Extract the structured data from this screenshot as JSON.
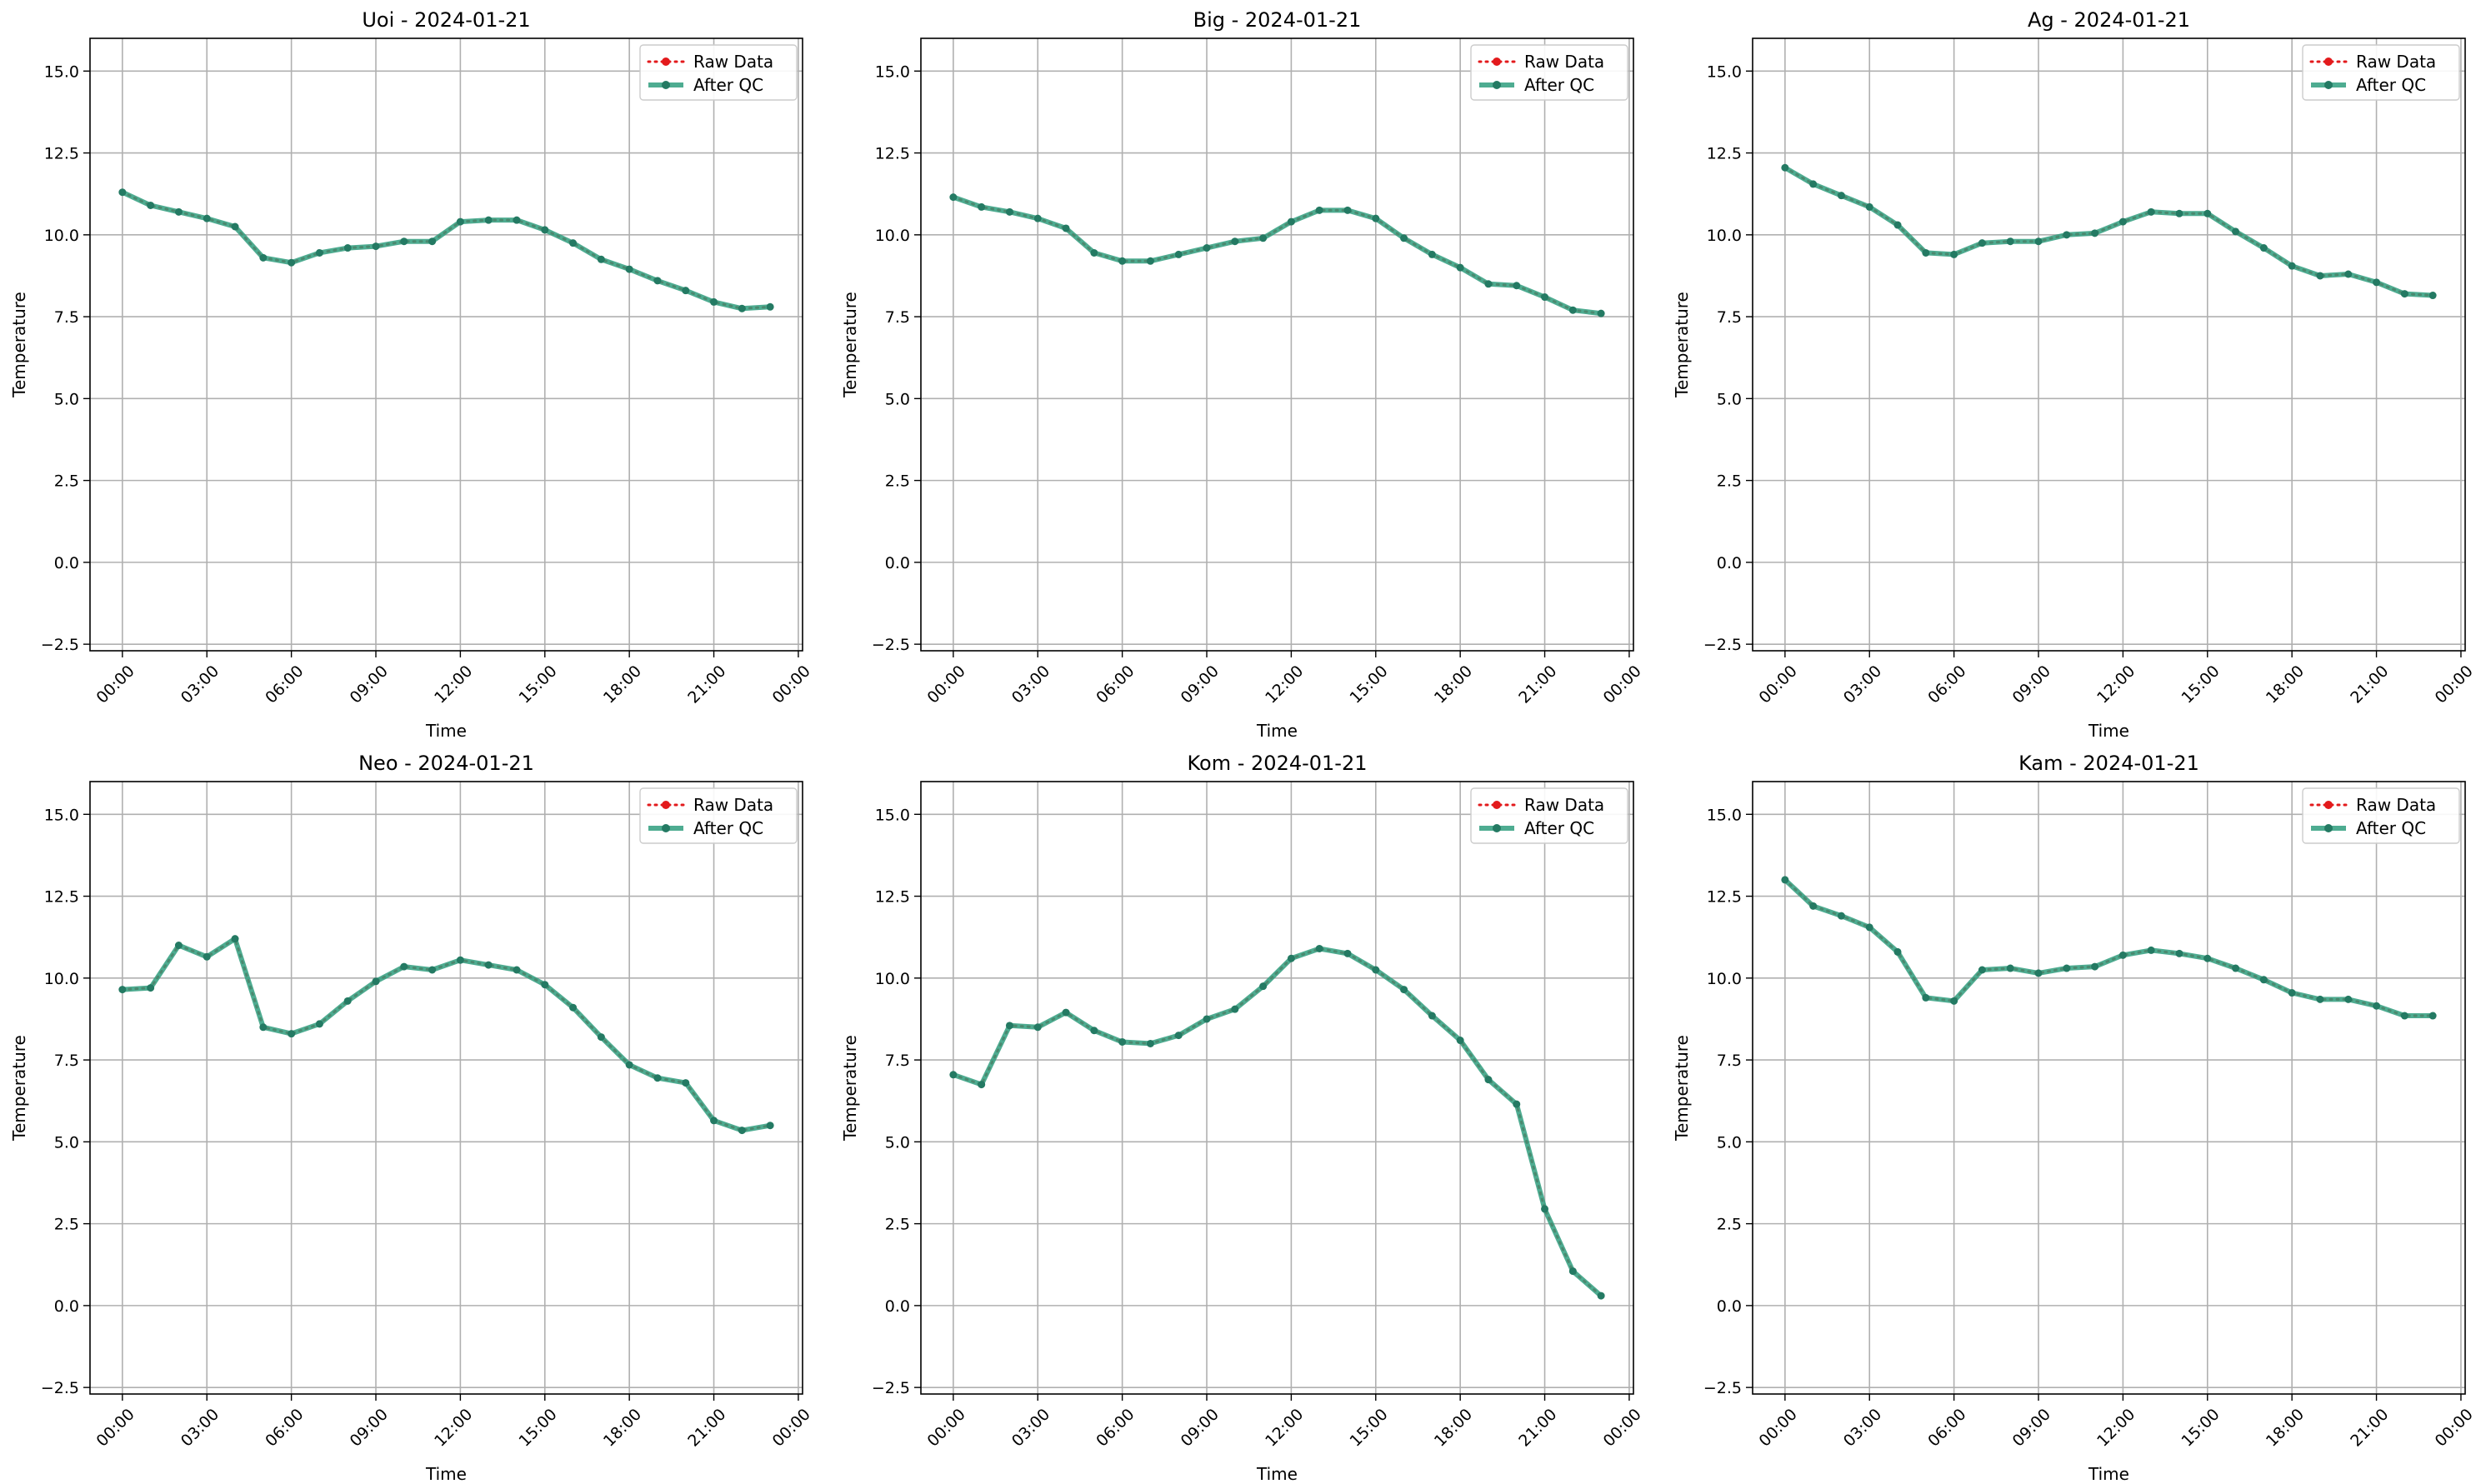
{
  "chart_data": [
    {
      "type": "line",
      "title": "Uoi - 2024-01-21",
      "xlabel": "Time",
      "ylabel": "Temperature",
      "ylim": [
        -2.7,
        16.0
      ],
      "yticks": [
        "−2.5",
        "0.0",
        "2.5",
        "5.0",
        "7.5",
        "10.0",
        "12.5",
        "15.0"
      ],
      "xlim_hours": [
        -1.15,
        24.15
      ],
      "xticks": [
        "00:00",
        "03:00",
        "06:00",
        "09:00",
        "12:00",
        "15:00",
        "18:00",
        "21:00",
        "00:00"
      ],
      "grid": true,
      "legend": "top-right",
      "x": [
        "00:00",
        "01:00",
        "02:00",
        "03:00",
        "04:00",
        "05:00",
        "06:00",
        "07:00",
        "08:00",
        "09:00",
        "10:00",
        "11:00",
        "12:00",
        "13:00",
        "14:00",
        "15:00",
        "16:00",
        "17:00",
        "18:00",
        "19:00",
        "20:00",
        "21:00",
        "22:00",
        "23:00"
      ],
      "series": [
        {
          "name": "Raw Data",
          "values": [
            11.3,
            10.9,
            10.7,
            10.5,
            10.25,
            9.3,
            9.15,
            9.45,
            9.6,
            9.65,
            9.8,
            9.8,
            10.4,
            10.45,
            10.45,
            10.15,
            9.75,
            9.25,
            8.95,
            8.6,
            8.3,
            7.95,
            7.75,
            7.8
          ]
        },
        {
          "name": "After QC",
          "values": [
            11.3,
            10.9,
            10.7,
            10.5,
            10.25,
            9.3,
            9.15,
            9.45,
            9.6,
            9.65,
            9.8,
            9.8,
            10.4,
            10.45,
            10.45,
            10.15,
            9.75,
            9.25,
            8.95,
            8.6,
            8.3,
            7.95,
            7.75,
            7.8
          ]
        }
      ]
    },
    {
      "type": "line",
      "title": "Big - 2024-01-21",
      "xlabel": "Time",
      "ylabel": "Temperature",
      "ylim": [
        -2.7,
        16.0
      ],
      "yticks": [
        "−2.5",
        "0.0",
        "2.5",
        "5.0",
        "7.5",
        "10.0",
        "12.5",
        "15.0"
      ],
      "xlim_hours": [
        -1.15,
        24.15
      ],
      "xticks": [
        "00:00",
        "03:00",
        "06:00",
        "09:00",
        "12:00",
        "15:00",
        "18:00",
        "21:00",
        "00:00"
      ],
      "grid": true,
      "legend": "top-right",
      "x": [
        "00:00",
        "01:00",
        "02:00",
        "03:00",
        "04:00",
        "05:00",
        "06:00",
        "07:00",
        "08:00",
        "09:00",
        "10:00",
        "11:00",
        "12:00",
        "13:00",
        "14:00",
        "15:00",
        "16:00",
        "17:00",
        "18:00",
        "19:00",
        "20:00",
        "21:00",
        "22:00",
        "23:00"
      ],
      "series": [
        {
          "name": "Raw Data",
          "values": [
            11.15,
            10.85,
            10.7,
            10.5,
            10.2,
            9.45,
            9.2,
            9.2,
            9.4,
            9.6,
            9.8,
            9.9,
            10.4,
            10.75,
            10.75,
            10.5,
            9.9,
            9.4,
            9.0,
            8.5,
            8.45,
            8.1,
            7.7,
            7.6
          ]
        },
        {
          "name": "After QC",
          "values": [
            11.15,
            10.85,
            10.7,
            10.5,
            10.2,
            9.45,
            9.2,
            9.2,
            9.4,
            9.6,
            9.8,
            9.9,
            10.4,
            10.75,
            10.75,
            10.5,
            9.9,
            9.4,
            9.0,
            8.5,
            8.45,
            8.1,
            7.7,
            7.6
          ]
        }
      ]
    },
    {
      "type": "line",
      "title": "Ag - 2024-01-21",
      "xlabel": "Time",
      "ylabel": "Temperature",
      "ylim": [
        -2.7,
        16.0
      ],
      "yticks": [
        "−2.5",
        "0.0",
        "2.5",
        "5.0",
        "7.5",
        "10.0",
        "12.5",
        "15.0"
      ],
      "xlim_hours": [
        -1.15,
        24.15
      ],
      "xticks": [
        "00:00",
        "03:00",
        "06:00",
        "09:00",
        "12:00",
        "15:00",
        "18:00",
        "21:00",
        "00:00"
      ],
      "grid": true,
      "legend": "top-right",
      "x": [
        "00:00",
        "01:00",
        "02:00",
        "03:00",
        "04:00",
        "05:00",
        "06:00",
        "07:00",
        "08:00",
        "09:00",
        "10:00",
        "11:00",
        "12:00",
        "13:00",
        "14:00",
        "15:00",
        "16:00",
        "17:00",
        "18:00",
        "19:00",
        "20:00",
        "21:00",
        "22:00",
        "23:00"
      ],
      "series": [
        {
          "name": "Raw Data",
          "values": [
            12.05,
            11.55,
            11.2,
            10.85,
            10.3,
            9.45,
            9.4,
            9.75,
            9.8,
            9.8,
            10.0,
            10.05,
            10.4,
            10.7,
            10.65,
            10.65,
            10.1,
            9.6,
            9.05,
            8.75,
            8.8,
            8.55,
            8.2,
            8.15
          ]
        },
        {
          "name": "After QC",
          "values": [
            12.05,
            11.55,
            11.2,
            10.85,
            10.3,
            9.45,
            9.4,
            9.75,
            9.8,
            9.8,
            10.0,
            10.05,
            10.4,
            10.7,
            10.65,
            10.65,
            10.1,
            9.6,
            9.05,
            8.75,
            8.8,
            8.55,
            8.2,
            8.15
          ]
        }
      ]
    },
    {
      "type": "line",
      "title": "Neo - 2024-01-21",
      "xlabel": "Time",
      "ylabel": "Temperature",
      "ylim": [
        -2.7,
        16.0
      ],
      "yticks": [
        "−2.5",
        "0.0",
        "2.5",
        "5.0",
        "7.5",
        "10.0",
        "12.5",
        "15.0"
      ],
      "xlim_hours": [
        -1.15,
        24.15
      ],
      "xticks": [
        "00:00",
        "03:00",
        "06:00",
        "09:00",
        "12:00",
        "15:00",
        "18:00",
        "21:00",
        "00:00"
      ],
      "grid": true,
      "legend": "top-right",
      "x": [
        "00:00",
        "01:00",
        "02:00",
        "03:00",
        "04:00",
        "05:00",
        "06:00",
        "07:00",
        "08:00",
        "09:00",
        "10:00",
        "11:00",
        "12:00",
        "13:00",
        "14:00",
        "15:00",
        "16:00",
        "17:00",
        "18:00",
        "19:00",
        "20:00",
        "21:00",
        "22:00",
        "23:00"
      ],
      "series": [
        {
          "name": "Raw Data",
          "values": [
            9.65,
            9.7,
            11.0,
            10.65,
            11.2,
            8.5,
            8.3,
            8.6,
            9.3,
            9.9,
            10.35,
            10.25,
            10.55,
            10.4,
            10.25,
            9.8,
            9.1,
            8.2,
            7.35,
            6.95,
            6.8,
            5.65,
            5.35,
            5.5
          ]
        },
        {
          "name": "After QC",
          "values": [
            9.65,
            9.7,
            11.0,
            10.65,
            11.2,
            8.5,
            8.3,
            8.6,
            9.3,
            9.9,
            10.35,
            10.25,
            10.55,
            10.4,
            10.25,
            9.8,
            9.1,
            8.2,
            7.35,
            6.95,
            6.8,
            5.65,
            5.35,
            5.5
          ]
        }
      ]
    },
    {
      "type": "line",
      "title": "Kom - 2024-01-21",
      "xlabel": "Time",
      "ylabel": "Temperature",
      "ylim": [
        -2.7,
        16.0
      ],
      "yticks": [
        "−2.5",
        "0.0",
        "2.5",
        "5.0",
        "7.5",
        "10.0",
        "12.5",
        "15.0"
      ],
      "xlim_hours": [
        -1.15,
        24.15
      ],
      "xticks": [
        "00:00",
        "03:00",
        "06:00",
        "09:00",
        "12:00",
        "15:00",
        "18:00",
        "21:00",
        "00:00"
      ],
      "grid": true,
      "legend": "top-right",
      "x": [
        "00:00",
        "01:00",
        "02:00",
        "03:00",
        "04:00",
        "05:00",
        "06:00",
        "07:00",
        "08:00",
        "09:00",
        "10:00",
        "11:00",
        "12:00",
        "13:00",
        "14:00",
        "15:00",
        "16:00",
        "17:00",
        "18:00",
        "19:00",
        "20:00",
        "21:00",
        "22:00",
        "23:00"
      ],
      "series": [
        {
          "name": "Raw Data",
          "values": [
            7.05,
            6.75,
            8.55,
            8.5,
            8.95,
            8.4,
            8.05,
            8.0,
            8.25,
            8.75,
            9.05,
            9.75,
            10.6,
            10.9,
            10.75,
            10.25,
            9.65,
            8.85,
            8.1,
            6.9,
            6.15,
            2.95,
            1.05,
            0.3
          ]
        },
        {
          "name": "After QC",
          "values": [
            7.05,
            6.75,
            8.55,
            8.5,
            8.95,
            8.4,
            8.05,
            8.0,
            8.25,
            8.75,
            9.05,
            9.75,
            10.6,
            10.9,
            10.75,
            10.25,
            9.65,
            8.85,
            8.1,
            6.9,
            6.15,
            2.95,
            1.05,
            0.3
          ]
        }
      ]
    },
    {
      "type": "line",
      "title": "Kam - 2024-01-21",
      "xlabel": "Time",
      "ylabel": "Temperature",
      "ylim": [
        -2.7,
        16.0
      ],
      "yticks": [
        "−2.5",
        "0.0",
        "2.5",
        "5.0",
        "7.5",
        "10.0",
        "12.5",
        "15.0"
      ],
      "xlim_hours": [
        -1.15,
        24.15
      ],
      "xticks": [
        "00:00",
        "03:00",
        "06:00",
        "09:00",
        "12:00",
        "15:00",
        "18:00",
        "21:00",
        "00:00"
      ],
      "grid": true,
      "legend": "top-right",
      "x": [
        "00:00",
        "01:00",
        "02:00",
        "03:00",
        "04:00",
        "05:00",
        "06:00",
        "07:00",
        "08:00",
        "09:00",
        "10:00",
        "11:00",
        "12:00",
        "13:00",
        "14:00",
        "15:00",
        "16:00",
        "17:00",
        "18:00",
        "19:00",
        "20:00",
        "21:00",
        "22:00",
        "23:00"
      ],
      "series": [
        {
          "name": "Raw Data",
          "values": [
            13.0,
            12.2,
            11.9,
            11.55,
            10.8,
            9.4,
            9.3,
            10.25,
            10.3,
            10.15,
            10.3,
            10.35,
            10.7,
            10.85,
            10.75,
            10.6,
            10.3,
            9.95,
            9.55,
            9.35,
            9.35,
            9.15,
            8.85,
            8.85
          ]
        },
        {
          "name": "After QC",
          "values": [
            13.0,
            12.2,
            11.9,
            11.55,
            10.8,
            9.4,
            9.3,
            10.25,
            10.3,
            10.15,
            10.3,
            10.35,
            10.7,
            10.85,
            10.75,
            10.6,
            10.3,
            9.95,
            9.55,
            9.35,
            9.35,
            9.15,
            8.85,
            8.85
          ]
        }
      ]
    }
  ],
  "colors": {
    "raw": "#e31a1c",
    "qc": "#2f9e7e",
    "qc_marker": "#247a63",
    "grid": "#b0b0b0",
    "axis": "#000000",
    "legend_border": "#cccccc"
  }
}
